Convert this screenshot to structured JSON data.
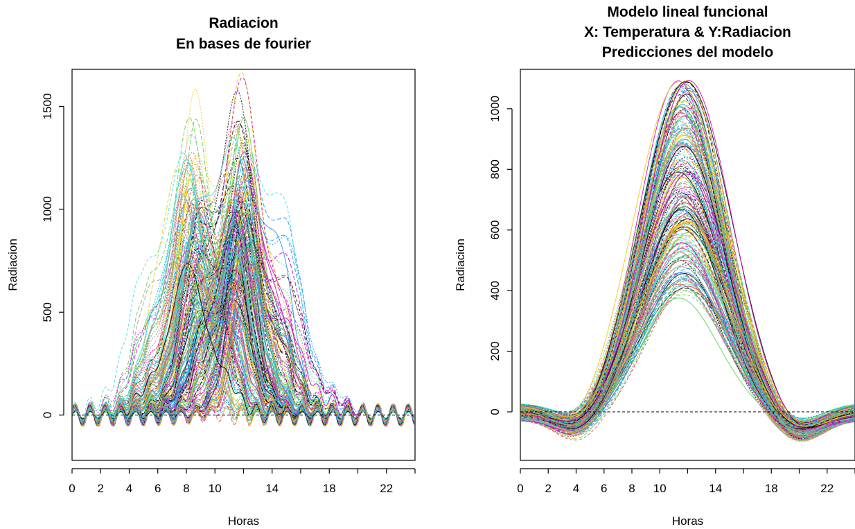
{
  "chart_data": [
    {
      "type": "line",
      "title": [
        "Radiacion",
        "En bases de fourier"
      ],
      "xlabel": "Horas",
      "ylabel": "Radiacion",
      "xlim": [
        0,
        24
      ],
      "ylim": [
        -220,
        1680
      ],
      "x_ticks": [
        0,
        2,
        4,
        6,
        8,
        10,
        14,
        18,
        22
      ],
      "x_minor_ticks": [
        12,
        16,
        20,
        24
      ],
      "y_ticks": [
        0,
        500,
        1000,
        1500
      ],
      "reference_line": {
        "y": 0,
        "style": "dashed"
      },
      "series_count": 220,
      "curve_shape": "daily bell between ~6 h and ~17 h with small Fourier ripples outside daylight",
      "peak_range": [
        600,
        1650
      ],
      "peak_hour_range": [
        7.2,
        15.2
      ],
      "colors": [
        "#000000",
        "#DF536B",
        "#61D04F",
        "#2297E6",
        "#28E2E5",
        "#CD0BBC",
        "#F5C710",
        "#9E9E9E"
      ]
    },
    {
      "type": "line",
      "title": [
        "Modelo lineal funcional",
        "X: Temperatura & Y:Radiacion",
        "Predicciones del modelo"
      ],
      "xlabel": "Horas",
      "ylabel": "Radiacion",
      "xlim": [
        0,
        24
      ],
      "ylim": [
        -160,
        1130
      ],
      "x_ticks": [
        0,
        2,
        4,
        6,
        8,
        10,
        14,
        18,
        22
      ],
      "x_minor_ticks": [
        12,
        16,
        20,
        24
      ],
      "y_ticks": [
        0,
        200,
        400,
        600,
        800,
        1000
      ],
      "reference_line": {
        "y": 0,
        "style": "dashed"
      },
      "series_count": 200,
      "curve_shape": "smooth bell centred near 11.7 h",
      "peak_range": [
        370,
        1100
      ],
      "peak_hour": 11.7,
      "colors": [
        "#000000",
        "#DF536B",
        "#61D04F",
        "#2297E6",
        "#28E2E5",
        "#CD0BBC",
        "#F5C710",
        "#9E9E9E"
      ]
    }
  ]
}
